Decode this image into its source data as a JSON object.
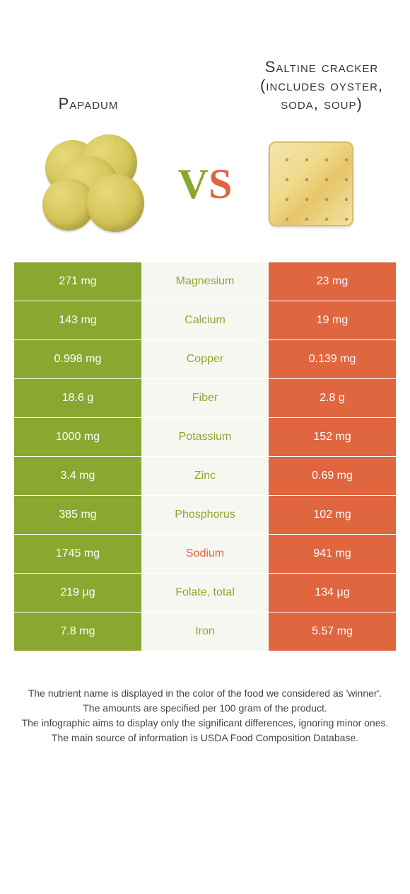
{
  "foods": {
    "left": {
      "name": "Papadum"
    },
    "right": {
      "name": "Saltine cracker (includes oyster, soda, soup)"
    }
  },
  "vs": {
    "v": "V",
    "s": "S"
  },
  "colors": {
    "left": "#8aa830",
    "right": "#e06640",
    "mid_bg": "#f7f7f2"
  },
  "rows": [
    {
      "nutrient": "Magnesium",
      "left": "271 mg",
      "right": "23 mg",
      "winner": "left"
    },
    {
      "nutrient": "Calcium",
      "left": "143 mg",
      "right": "19 mg",
      "winner": "left"
    },
    {
      "nutrient": "Copper",
      "left": "0.998 mg",
      "right": "0.139 mg",
      "winner": "left"
    },
    {
      "nutrient": "Fiber",
      "left": "18.6 g",
      "right": "2.8 g",
      "winner": "left"
    },
    {
      "nutrient": "Potassium",
      "left": "1000 mg",
      "right": "152 mg",
      "winner": "left"
    },
    {
      "nutrient": "Zinc",
      "left": "3.4 mg",
      "right": "0.69 mg",
      "winner": "left"
    },
    {
      "nutrient": "Phosphorus",
      "left": "385 mg",
      "right": "102 mg",
      "winner": "left"
    },
    {
      "nutrient": "Sodium",
      "left": "1745 mg",
      "right": "941 mg",
      "winner": "right"
    },
    {
      "nutrient": "Folate, total",
      "left": "219 µg",
      "right": "134 µg",
      "winner": "left"
    },
    {
      "nutrient": "Iron",
      "left": "7.8 mg",
      "right": "5.57 mg",
      "winner": "left"
    }
  ],
  "footer": {
    "line1": "The nutrient name is displayed in the color of the food we considered as 'winner'.",
    "line2": "The amounts are specified per 100 gram of the product.",
    "line3": "The infographic aims to display only the significant differences, ignoring minor ones.",
    "line4": "The main source of information is USDA Food Composition Database."
  }
}
